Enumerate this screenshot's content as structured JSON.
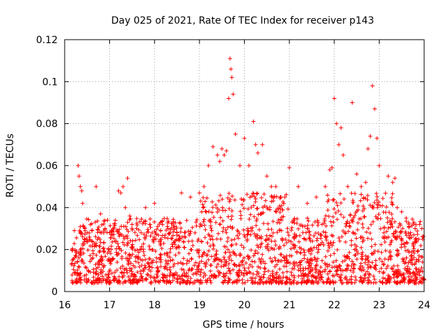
{
  "chart_data": {
    "type": "scatter",
    "title": "Day 025 of 2021, Rate Of TEC Index for receiver p143",
    "xlabel": "GPS time / hours",
    "ylabel": "ROTI / TECUs",
    "xlim": [
      16,
      24
    ],
    "ylim": [
      0,
      0.12
    ],
    "xticks": [
      "16",
      "17",
      "18",
      "19",
      "20",
      "21",
      "22",
      "23",
      "24"
    ],
    "yticks": [
      "0",
      "0.02",
      "0.04",
      "0.06",
      "0.08",
      "0.1",
      "0.12"
    ],
    "grid": true,
    "marker": "+",
    "color": "#ff0000",
    "series": [
      {
        "name": "ROTI",
        "x": [
          16.3,
          16.32,
          16.35,
          16.38,
          16.4,
          16.45,
          16.5,
          16.55,
          16.6,
          16.7,
          16.8,
          16.9,
          17.0,
          17.2,
          17.25,
          17.3,
          17.35,
          17.4,
          17.45,
          17.5,
          17.6,
          17.8,
          17.9,
          18.0,
          18.3,
          18.5,
          18.6,
          18.8,
          19.0,
          19.1,
          19.2,
          19.3,
          19.4,
          19.45,
          19.5,
          19.55,
          19.6,
          19.65,
          19.68,
          19.7,
          19.72,
          19.75,
          19.8,
          19.9,
          20.0,
          20.1,
          20.2,
          20.25,
          20.3,
          20.4,
          20.5,
          20.6,
          20.7,
          20.8,
          20.9,
          21.0,
          21.2,
          21.4,
          21.6,
          21.8,
          21.9,
          21.95,
          22.0,
          22.05,
          22.1,
          22.15,
          22.2,
          22.3,
          22.4,
          22.5,
          22.6,
          22.7,
          22.75,
          22.8,
          22.85,
          22.9,
          22.95,
          23.0,
          23.2,
          23.3,
          23.35,
          23.4,
          23.5,
          23.6,
          23.7,
          23.8,
          23.9,
          23.95
        ],
        "y": [
          0.06,
          0.055,
          0.05,
          0.048,
          0.042,
          0.03,
          0.028,
          0.026,
          0.024,
          0.05,
          0.037,
          0.03,
          0.028,
          0.048,
          0.047,
          0.05,
          0.04,
          0.054,
          0.036,
          0.032,
          0.03,
          0.04,
          0.032,
          0.042,
          0.03,
          0.028,
          0.047,
          0.045,
          0.047,
          0.05,
          0.06,
          0.069,
          0.065,
          0.062,
          0.068,
          0.065,
          0.067,
          0.092,
          0.111,
          0.106,
          0.102,
          0.094,
          0.075,
          0.06,
          0.073,
          0.06,
          0.081,
          0.07,
          0.066,
          0.07,
          0.055,
          0.05,
          0.05,
          0.045,
          0.045,
          0.059,
          0.05,
          0.042,
          0.045,
          0.05,
          0.058,
          0.059,
          0.092,
          0.08,
          0.07,
          0.078,
          0.065,
          0.05,
          0.09,
          0.056,
          0.05,
          0.052,
          0.068,
          0.074,
          0.098,
          0.087,
          0.073,
          0.06,
          0.055,
          0.052,
          0.054,
          0.04,
          0.038,
          0.035,
          0.028,
          0.03,
          0.032,
          0.03
        ]
      }
    ],
    "background_band": {
      "description": "dense cloud of points between these bounds across the full range",
      "ymin": 0.004,
      "ymax": 0.035,
      "density_per_hour": 260
    }
  }
}
